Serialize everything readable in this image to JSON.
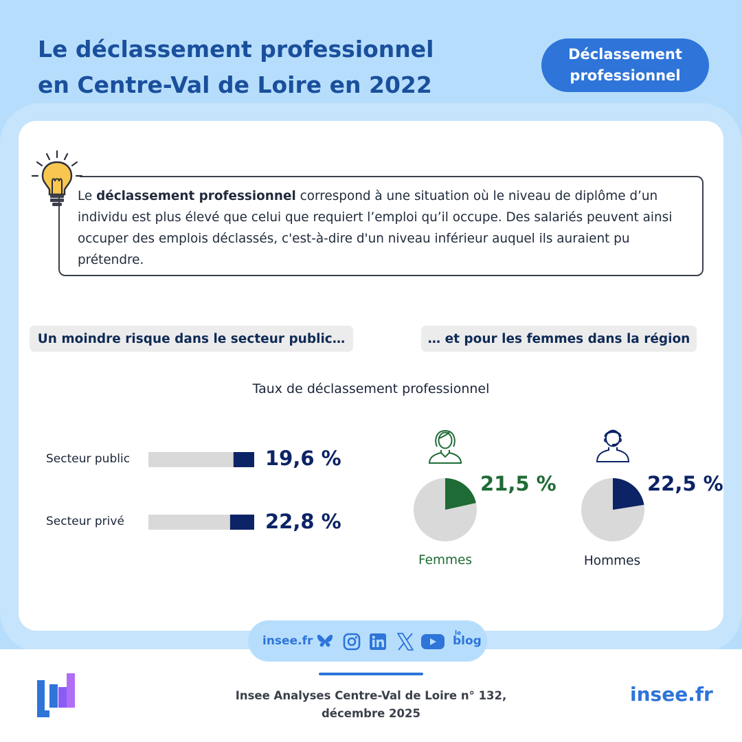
{
  "header": {
    "title_line1": "Le déclassement professionnel",
    "title_line2": "en Centre-Val de Loire en 2022",
    "badge_line1": "Déclassement",
    "badge_line2": "professionnel"
  },
  "definition": {
    "prefix": "Le ",
    "bold": "déclassement professionnel",
    "rest": " correspond à une situation où le niveau de diplôme d’un individu est plus élevé que celui que requiert l’emploi qu’il occupe. Des salariés peuvent ainsi occuper des emplois déclassés, c'est-à-dire d'un niveau inférieur auquel ils auraient pu prétendre."
  },
  "pills": {
    "left": "Un moindre risque dans le secteur public…",
    "right": "… et pour les femmes dans la région"
  },
  "chart_title": "Taux de déclassement professionnel",
  "colors": {
    "navy": "#0c2366",
    "green": "#1e6b35",
    "grey": "#d9d9d9",
    "accent": "#2e74d9"
  },
  "chart_data": [
    {
      "type": "bar",
      "categories": [
        "Secteur public",
        "Secteur privé"
      ],
      "values": [
        19.6,
        22.8
      ],
      "value_labels": [
        "19,6 %",
        "22,8 %"
      ],
      "unit": "%",
      "ylim": [
        0,
        100
      ]
    },
    {
      "type": "pie",
      "label": "Femmes",
      "value": 21.5,
      "value_label": "21,5 %",
      "color": "#1e6b35"
    },
    {
      "type": "pie",
      "label": "Hommes",
      "value": 22.5,
      "value_label": "22,5 %",
      "color": "#0c2366"
    }
  ],
  "social": {
    "site": "insee.fr",
    "icons": [
      "bluesky-icon",
      "instagram-icon",
      "linkedin-icon",
      "x-icon",
      "youtube-icon",
      "blog-icon"
    ],
    "blog_small": "le",
    "blog_big": "blog"
  },
  "footer": {
    "citation_line1": "Insee Analyses Centre-Val de Loire n° 132,",
    "citation_line2": "décembre 2025",
    "url": "insee.fr"
  }
}
